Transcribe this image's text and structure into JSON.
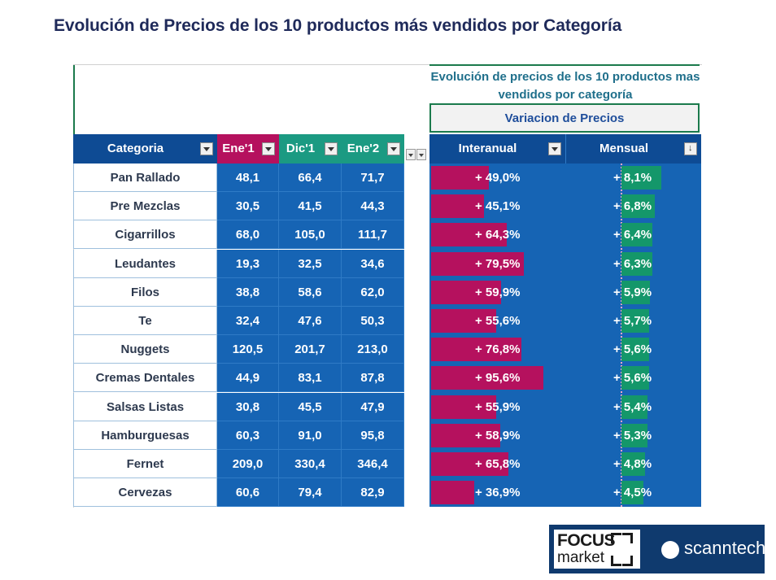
{
  "page": {
    "title": "Evolución de Precios de los 10 productos más vendidos por Categoría"
  },
  "sheet": {
    "subtitle_line1": "Evolución de precios de los 10 productos mas",
    "subtitle_line2": "vendidos por categoría",
    "variation_label": "Variacion de Precios"
  },
  "headers": {
    "categoria": "Categoria",
    "ene1": "Ene'1",
    "dic1": "Dic'1",
    "ene2": "Ene'2",
    "interanual": "Interanual",
    "mensual": "Mensual"
  },
  "colors": {
    "blue": "#1664b4",
    "navy": "#0e4b94",
    "magenta": "#b5115e",
    "green": "#14976a",
    "teal": "#1b9a82"
  },
  "rows": [
    {
      "cat": "Pan Rallado",
      "ene1": "48,1",
      "dic1": "66,4",
      "ene2": "71,7",
      "interanual": "+ 49,0%",
      "inter_val": 49.0,
      "mensual": "+ 8,1%",
      "mens_val": 8.1
    },
    {
      "cat": "Pre Mezclas",
      "ene1": "30,5",
      "dic1": "41,5",
      "ene2": "44,3",
      "interanual": "+ 45,1%",
      "inter_val": 45.1,
      "mensual": "+ 6,8%",
      "mens_val": 6.8
    },
    {
      "cat": "Cigarrillos",
      "ene1": "68,0",
      "dic1": "105,0",
      "ene2": "111,7",
      "interanual": "+ 64,3%",
      "inter_val": 64.3,
      "mensual": "+ 6,4%",
      "mens_val": 6.4
    },
    {
      "cat": "Leudantes",
      "ene1": "19,3",
      "dic1": "32,5",
      "ene2": "34,6",
      "interanual": "+ 79,5%",
      "inter_val": 79.5,
      "mensual": "+ 6,3%",
      "mens_val": 6.3
    },
    {
      "cat": "Filos",
      "ene1": "38,8",
      "dic1": "58,6",
      "ene2": "62,0",
      "interanual": "+ 59,9%",
      "inter_val": 59.9,
      "mensual": "+ 5,9%",
      "mens_val": 5.9
    },
    {
      "cat": "Te",
      "ene1": "32,4",
      "dic1": "47,6",
      "ene2": "50,3",
      "interanual": "+ 55,6%",
      "inter_val": 55.6,
      "mensual": "+ 5,7%",
      "mens_val": 5.7
    },
    {
      "cat": "Nuggets",
      "ene1": "120,5",
      "dic1": "201,7",
      "ene2": "213,0",
      "interanual": "+ 76,8%",
      "inter_val": 76.8,
      "mensual": "+ 5,6%",
      "mens_val": 5.6
    },
    {
      "cat": "Cremas Dentales",
      "ene1": "44,9",
      "dic1": "83,1",
      "ene2": "87,8",
      "interanual": "+ 95,6%",
      "inter_val": 95.6,
      "mensual": "+ 5,6%",
      "mens_val": 5.6
    },
    {
      "cat": "Salsas Listas",
      "ene1": "30,8",
      "dic1": "45,5",
      "ene2": "47,9",
      "interanual": "+ 55,9%",
      "inter_val": 55.9,
      "mensual": "+ 5,4%",
      "mens_val": 5.4
    },
    {
      "cat": "Hamburguesas",
      "ene1": "60,3",
      "dic1": "91,0",
      "ene2": "95,8",
      "interanual": "+ 58,9%",
      "inter_val": 58.9,
      "mensual": "+ 5,3%",
      "mens_val": 5.3
    },
    {
      "cat": "Fernet",
      "ene1": "209,0",
      "dic1": "330,4",
      "ene2": "346,4",
      "interanual": "+ 65,8%",
      "inter_val": 65.8,
      "mensual": "+ 4,8%",
      "mens_val": 4.8
    },
    {
      "cat": "Cervezas",
      "ene1": "60,6",
      "dic1": "79,4",
      "ene2": "82,9",
      "interanual": "+ 36,9%",
      "inter_val": 36.9,
      "mensual": "+ 4,5%",
      "mens_val": 4.5
    }
  ],
  "logos": {
    "focus": "FOCUS",
    "market": "market",
    "scanntech": "scanntech"
  }
}
